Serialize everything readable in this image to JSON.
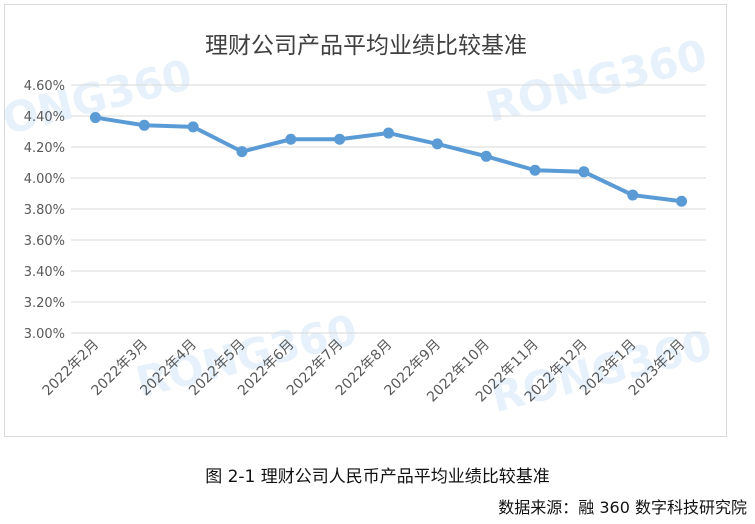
{
  "chart_data": {
    "type": "line",
    "title": "理财公司产品平均业绩比较基准",
    "categories": [
      "2022年2月",
      "2022年3月",
      "2022年4月",
      "2022年5月",
      "2022年6月",
      "2022年7月",
      "2022年8月",
      "2022年9月",
      "2022年10月",
      "2022年11月",
      "2022年12月",
      "2023年1月",
      "2023年2月"
    ],
    "series": [
      {
        "values": [
          4.39,
          4.34,
          4.33,
          4.17,
          4.25,
          4.25,
          4.29,
          4.22,
          4.14,
          4.05,
          4.04,
          3.89,
          3.85
        ]
      }
    ],
    "ylim": [
      3.0,
      4.6
    ],
    "yticks": [
      "4.60%",
      "4.40%",
      "4.20%",
      "4.00%",
      "3.80%",
      "3.60%",
      "3.40%",
      "3.20%",
      "3.00%"
    ],
    "grid": true,
    "line_color": "#5b9bd5",
    "grid_color": "#d9d9d9"
  },
  "watermark": "RONG360",
  "caption": "图 2-1 理财公司人民币产品平均业绩比较基准",
  "source": "数据来源：融 360 数字科技研究院"
}
